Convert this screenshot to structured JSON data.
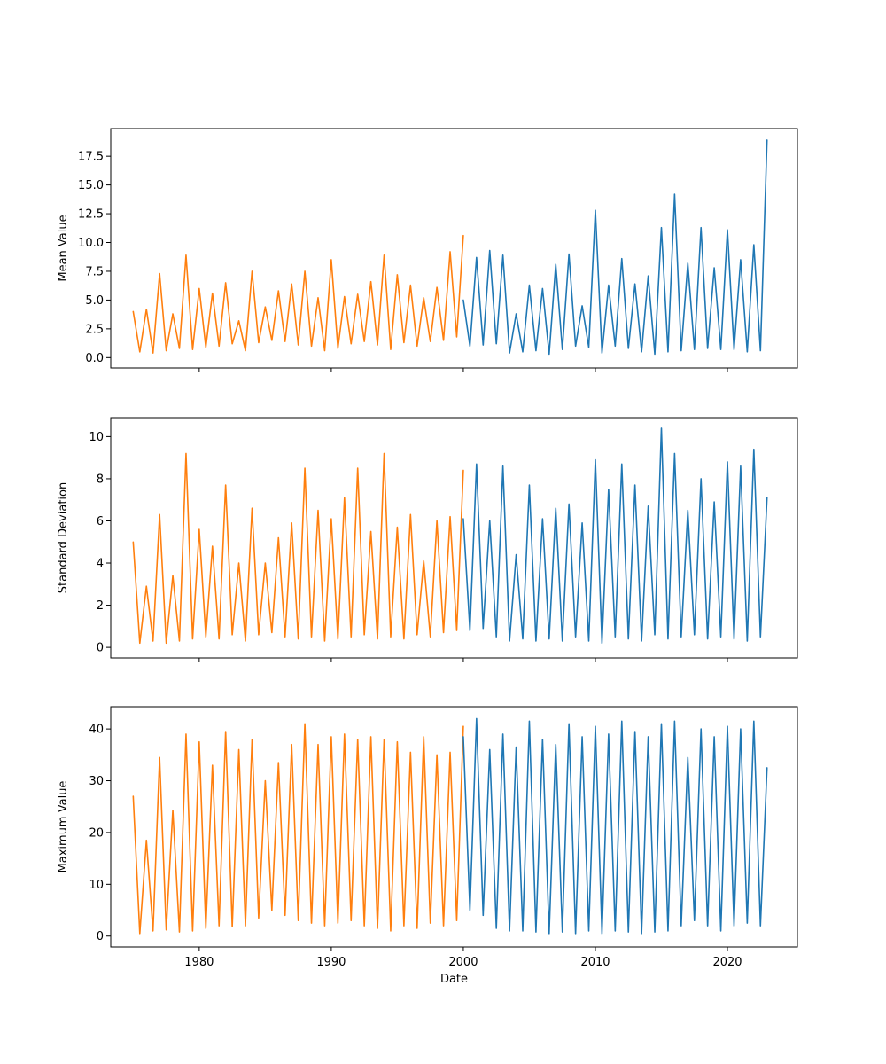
{
  "colors": {
    "historical": "#ff7f0e",
    "recent": "#1f77b4"
  },
  "chart_data": [
    {
      "type": "line",
      "ylabel": "Mean Value",
      "xlabel": "",
      "xlim": [
        1973.3,
        2025.3
      ],
      "ylim": [
        -0.9,
        19.9
      ],
      "xticks": [
        1980,
        1990,
        2000,
        2010,
        2020
      ],
      "xtick_labels_visible": false,
      "yticks": [
        0.0,
        2.5,
        5.0,
        7.5,
        10.0,
        12.5,
        15.0,
        17.5
      ],
      "ytick_labels": [
        "0.0",
        "2.5",
        "5.0",
        "7.5",
        "10.0",
        "12.5",
        "15.0",
        "17.5"
      ],
      "grid": false,
      "series": [
        {
          "color": "#ff7f0e",
          "x": [
            1975.0,
            1975.5,
            1976.0,
            1976.5,
            1977.0,
            1977.5,
            1978.0,
            1978.5,
            1979.0,
            1979.5,
            1980.0,
            1980.5,
            1981.0,
            1981.5,
            1982.0,
            1982.5,
            1983.0,
            1983.5,
            1984.0,
            1984.5,
            1985.0,
            1985.5,
            1986.0,
            1986.5,
            1987.0,
            1987.5,
            1988.0,
            1988.5,
            1989.0,
            1989.5,
            1990.0,
            1990.5,
            1991.0,
            1991.5,
            1992.0,
            1992.5,
            1993.0,
            1993.5,
            1994.0,
            1994.5,
            1995.0,
            1995.5,
            1996.0,
            1996.5,
            1997.0,
            1997.5,
            1998.0,
            1998.5,
            1999.0,
            1999.5,
            2000.0
          ],
          "y": [
            4.0,
            0.5,
            4.2,
            0.4,
            7.3,
            0.6,
            3.8,
            0.8,
            8.9,
            0.7,
            6.0,
            0.9,
            5.6,
            1.0,
            6.5,
            1.2,
            3.2,
            0.6,
            7.5,
            1.3,
            4.4,
            1.5,
            5.8,
            1.4,
            6.4,
            1.1,
            7.5,
            1.0,
            5.2,
            0.6,
            8.5,
            0.8,
            5.3,
            1.2,
            5.5,
            1.4,
            6.6,
            1.1,
            8.9,
            0.7,
            7.2,
            1.3,
            6.3,
            1.0,
            5.2,
            1.4,
            6.1,
            1.5,
            9.2,
            1.8,
            10.6
          ]
        },
        {
          "color": "#1f77b4",
          "x": [
            2000.0,
            2000.5,
            2001.0,
            2001.5,
            2002.0,
            2002.5,
            2003.0,
            2003.5,
            2004.0,
            2004.5,
            2005.0,
            2005.5,
            2006.0,
            2006.5,
            2007.0,
            2007.5,
            2008.0,
            2008.5,
            2009.0,
            2009.5,
            2010.0,
            2010.5,
            2011.0,
            2011.5,
            2012.0,
            2012.5,
            2013.0,
            2013.5,
            2014.0,
            2014.5,
            2015.0,
            2015.5,
            2016.0,
            2016.5,
            2017.0,
            2017.5,
            2018.0,
            2018.5,
            2019.0,
            2019.5,
            2020.0,
            2020.5,
            2021.0,
            2021.5,
            2022.0,
            2022.5,
            2023.0
          ],
          "y": [
            5.0,
            1.0,
            8.7,
            1.1,
            9.3,
            1.2,
            8.9,
            0.4,
            3.8,
            0.5,
            6.3,
            0.6,
            6.0,
            0.3,
            8.1,
            0.7,
            9.0,
            1.0,
            4.5,
            0.9,
            12.8,
            0.4,
            6.3,
            1.0,
            8.6,
            0.8,
            6.4,
            0.5,
            7.1,
            0.3,
            11.3,
            0.5,
            14.2,
            0.6,
            8.2,
            0.7,
            11.3,
            0.8,
            7.8,
            0.7,
            11.1,
            0.7,
            8.5,
            0.5,
            9.8,
            0.6,
            18.9
          ]
        }
      ]
    },
    {
      "type": "line",
      "ylabel": "Standard Deviation",
      "xlabel": "",
      "xlim": [
        1973.3,
        2025.3
      ],
      "ylim": [
        -0.5,
        10.9
      ],
      "xticks": [
        1980,
        1990,
        2000,
        2010,
        2020
      ],
      "xtick_labels_visible": false,
      "yticks": [
        0,
        2,
        4,
        6,
        8,
        10
      ],
      "ytick_labels": [
        "0",
        "2",
        "4",
        "6",
        "8",
        "10"
      ],
      "grid": false,
      "series": [
        {
          "color": "#ff7f0e",
          "x": [
            1975.0,
            1975.5,
            1976.0,
            1976.5,
            1977.0,
            1977.5,
            1978.0,
            1978.5,
            1979.0,
            1979.5,
            1980.0,
            1980.5,
            1981.0,
            1981.5,
            1982.0,
            1982.5,
            1983.0,
            1983.5,
            1984.0,
            1984.5,
            1985.0,
            1985.5,
            1986.0,
            1986.5,
            1987.0,
            1987.5,
            1988.0,
            1988.5,
            1989.0,
            1989.5,
            1990.0,
            1990.5,
            1991.0,
            1991.5,
            1992.0,
            1992.5,
            1993.0,
            1993.5,
            1994.0,
            1994.5,
            1995.0,
            1995.5,
            1996.0,
            1996.5,
            1997.0,
            1997.5,
            1998.0,
            1998.5,
            1999.0,
            1999.5,
            2000.0
          ],
          "y": [
            5.0,
            0.2,
            2.9,
            0.3,
            6.3,
            0.2,
            3.4,
            0.3,
            9.2,
            0.4,
            5.6,
            0.5,
            4.8,
            0.4,
            7.7,
            0.6,
            4.0,
            0.3,
            6.6,
            0.6,
            4.0,
            0.7,
            5.2,
            0.5,
            5.9,
            0.4,
            8.5,
            0.5,
            6.5,
            0.3,
            6.1,
            0.4,
            7.1,
            0.5,
            8.5,
            0.6,
            5.5,
            0.4,
            9.2,
            0.5,
            5.7,
            0.4,
            6.3,
            0.6,
            4.1,
            0.5,
            6.0,
            0.7,
            6.2,
            0.8,
            8.4
          ]
        },
        {
          "color": "#1f77b4",
          "x": [
            2000.0,
            2000.5,
            2001.0,
            2001.5,
            2002.0,
            2002.5,
            2003.0,
            2003.5,
            2004.0,
            2004.5,
            2005.0,
            2005.5,
            2006.0,
            2006.5,
            2007.0,
            2007.5,
            2008.0,
            2008.5,
            2009.0,
            2009.5,
            2010.0,
            2010.5,
            2011.0,
            2011.5,
            2012.0,
            2012.5,
            2013.0,
            2013.5,
            2014.0,
            2014.5,
            2015.0,
            2015.5,
            2016.0,
            2016.5,
            2017.0,
            2017.5,
            2018.0,
            2018.5,
            2019.0,
            2019.5,
            2020.0,
            2020.5,
            2021.0,
            2021.5,
            2022.0,
            2022.5,
            2023.0
          ],
          "y": [
            6.1,
            0.8,
            8.7,
            0.9,
            6.0,
            0.5,
            8.6,
            0.3,
            4.4,
            0.4,
            7.7,
            0.3,
            6.1,
            0.4,
            6.6,
            0.3,
            6.8,
            0.5,
            5.9,
            0.3,
            8.9,
            0.2,
            7.5,
            0.5,
            8.7,
            0.4,
            7.7,
            0.3,
            6.7,
            0.6,
            10.4,
            0.4,
            9.2,
            0.5,
            6.5,
            0.6,
            8.0,
            0.4,
            6.9,
            0.5,
            8.8,
            0.4,
            8.6,
            0.3,
            9.4,
            0.5,
            7.1
          ]
        }
      ]
    },
    {
      "type": "line",
      "ylabel": "Maximum Value",
      "xlabel": "Date",
      "xlim": [
        1973.3,
        2025.3
      ],
      "ylim": [
        -2.1,
        44.3
      ],
      "xticks": [
        1980,
        1990,
        2000,
        2010,
        2020
      ],
      "xtick_labels": [
        "1980",
        "1990",
        "2000",
        "2010",
        "2020"
      ],
      "xtick_labels_visible": true,
      "yticks": [
        0,
        10,
        20,
        30,
        40
      ],
      "ytick_labels": [
        "0",
        "10",
        "20",
        "30",
        "40"
      ],
      "grid": false,
      "series": [
        {
          "color": "#ff7f0e",
          "x": [
            1975.0,
            1975.5,
            1976.0,
            1976.5,
            1977.0,
            1977.5,
            1978.0,
            1978.5,
            1979.0,
            1979.5,
            1980.0,
            1980.5,
            1981.0,
            1981.5,
            1982.0,
            1982.5,
            1983.0,
            1983.5,
            1984.0,
            1984.5,
            1985.0,
            1985.5,
            1986.0,
            1986.5,
            1987.0,
            1987.5,
            1988.0,
            1988.5,
            1989.0,
            1989.5,
            1990.0,
            1990.5,
            1991.0,
            1991.5,
            1992.0,
            1992.5,
            1993.0,
            1993.5,
            1994.0,
            1994.5,
            1995.0,
            1995.5,
            1996.0,
            1996.5,
            1997.0,
            1997.5,
            1998.0,
            1998.5,
            1999.0,
            1999.5,
            2000.0
          ],
          "y": [
            27.0,
            0.5,
            18.5,
            1.0,
            34.5,
            1.2,
            24.3,
            0.8,
            39.0,
            1.0,
            37.5,
            1.5,
            33.0,
            2.0,
            39.5,
            1.8,
            36.0,
            2.0,
            38.0,
            3.5,
            30.0,
            5.0,
            33.5,
            4.0,
            37.0,
            3.0,
            41.0,
            2.5,
            37.0,
            2.0,
            38.5,
            2.5,
            39.0,
            3.0,
            38.0,
            2.0,
            38.5,
            1.5,
            38.0,
            1.0,
            37.5,
            2.0,
            35.5,
            1.5,
            38.5,
            2.5,
            35.0,
            2.0,
            35.5,
            3.0,
            40.5
          ]
        },
        {
          "color": "#1f77b4",
          "x": [
            2000.0,
            2000.5,
            2001.0,
            2001.5,
            2002.0,
            2002.5,
            2003.0,
            2003.5,
            2004.0,
            2004.5,
            2005.0,
            2005.5,
            2006.0,
            2006.5,
            2007.0,
            2007.5,
            2008.0,
            2008.5,
            2009.0,
            2009.5,
            2010.0,
            2010.5,
            2011.0,
            2011.5,
            2012.0,
            2012.5,
            2013.0,
            2013.5,
            2014.0,
            2014.5,
            2015.0,
            2015.5,
            2016.0,
            2016.5,
            2017.0,
            2017.5,
            2018.0,
            2018.5,
            2019.0,
            2019.5,
            2020.0,
            2020.5,
            2021.0,
            2021.5,
            2022.0,
            2022.5,
            2023.0
          ],
          "y": [
            38.5,
            5.0,
            42.0,
            4.0,
            36.0,
            1.5,
            39.0,
            1.0,
            36.5,
            1.0,
            41.5,
            0.8,
            38.0,
            0.5,
            37.0,
            0.8,
            41.0,
            0.5,
            38.5,
            1.0,
            40.5,
            0.5,
            39.0,
            1.0,
            41.5,
            0.8,
            39.5,
            0.5,
            38.5,
            0.8,
            41.0,
            1.0,
            41.5,
            2.0,
            34.5,
            3.0,
            40.0,
            2.0,
            38.5,
            1.0,
            40.5,
            2.0,
            40.0,
            2.5,
            41.5,
            2.0,
            32.5
          ]
        }
      ]
    }
  ]
}
